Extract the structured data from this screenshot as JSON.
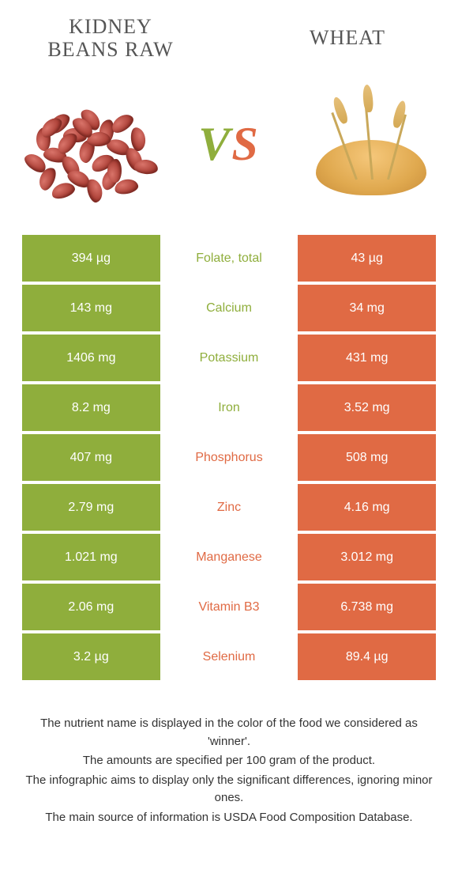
{
  "colors": {
    "green": "#8fae3c",
    "orange": "#e06a44",
    "white": "#ffffff"
  },
  "header": {
    "left_title": "Kidney beans raw",
    "right_title": "Wheat",
    "vs": {
      "v": "V",
      "s": "S"
    }
  },
  "nutrients": [
    {
      "name": "Folate, total",
      "left": "394 µg",
      "right": "43 µg",
      "winner": "left"
    },
    {
      "name": "Calcium",
      "left": "143 mg",
      "right": "34 mg",
      "winner": "left"
    },
    {
      "name": "Potassium",
      "left": "1406 mg",
      "right": "431 mg",
      "winner": "left"
    },
    {
      "name": "Iron",
      "left": "8.2 mg",
      "right": "3.52 mg",
      "winner": "left"
    },
    {
      "name": "Phosphorus",
      "left": "407 mg",
      "right": "508 mg",
      "winner": "right"
    },
    {
      "name": "Zinc",
      "left": "2.79 mg",
      "right": "4.16 mg",
      "winner": "right"
    },
    {
      "name": "Manganese",
      "left": "1.021 mg",
      "right": "3.012 mg",
      "winner": "right"
    },
    {
      "name": "Vitamin B3",
      "left": "2.06 mg",
      "right": "6.738 mg",
      "winner": "right"
    },
    {
      "name": "Selenium",
      "left": "3.2 µg",
      "right": "89.4 µg",
      "winner": "right"
    }
  ],
  "footer": {
    "line1": "The nutrient name is displayed in the color of the food we considered as 'winner'.",
    "line2": "The amounts are specified per 100 gram of the product.",
    "line3": "The infographic aims to display only the significant differences, ignoring minor ones.",
    "line4": "The main source of information is USDA Food Composition Database."
  }
}
